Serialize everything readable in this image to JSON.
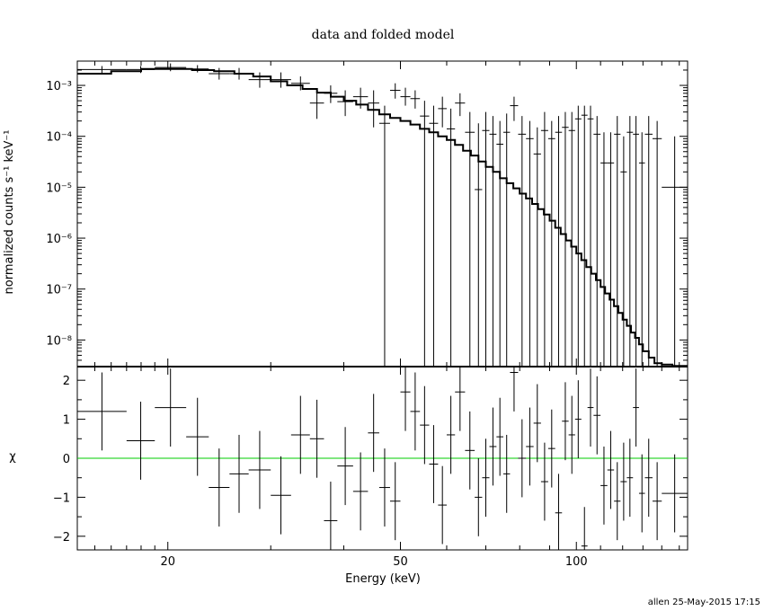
{
  "footer": "allen 25-May-2015 17:15",
  "colors": {
    "axis": "#000000",
    "data": "#000000",
    "model": "#000000",
    "zero_line": "#00cc00"
  },
  "chart_data": [
    {
      "panel": "top",
      "type": "line",
      "title": "data and folded model",
      "xlabel": "",
      "ylabel": "normalized counts s⁻¹ keV⁻¹",
      "x_scale": "log",
      "y_scale": "log",
      "xlim": [
        14,
        155
      ],
      "ylim": [
        3e-09,
        0.003
      ],
      "y_ticks": [
        {
          "v": 1e-08,
          "label": "10⁻⁸"
        },
        {
          "v": 1e-07,
          "label": "10⁻⁷"
        },
        {
          "v": 1e-06,
          "label": "10⁻⁶"
        },
        {
          "v": 1e-05,
          "label": "10⁻⁵"
        },
        {
          "v": 0.0001,
          "label": "10⁻⁴"
        },
        {
          "v": 0.001,
          "label": "10⁻³"
        }
      ],
      "model_step": [
        [
          14.0,
          0.0017
        ],
        [
          16.0,
          0.0019
        ],
        [
          18.0,
          0.0021
        ],
        [
          20.0,
          0.0021
        ],
        [
          22.0,
          0.002
        ],
        [
          24.0,
          0.0019
        ],
        [
          26.0,
          0.0017
        ],
        [
          28.0,
          0.0015
        ],
        [
          30.0,
          0.0012
        ],
        [
          32.0,
          0.001
        ],
        [
          34.0,
          0.00085
        ],
        [
          36.0,
          0.00072
        ],
        [
          38.0,
          0.0006
        ],
        [
          40.0,
          0.0005
        ],
        [
          42.0,
          0.00042
        ],
        [
          44.0,
          0.00033
        ],
        [
          46.0,
          0.00027
        ],
        [
          48.0,
          0.00023
        ],
        [
          50.0,
          0.0002
        ],
        [
          52.0,
          0.00017
        ],
        [
          54.0,
          0.00014
        ],
        [
          56.0,
          0.00012
        ],
        [
          58.0,
          0.0001
        ],
        [
          60.0,
          8.5e-05
        ],
        [
          62.0,
          6.8e-05
        ],
        [
          64.0,
          5.2e-05
        ],
        [
          66.0,
          4.2e-05
        ],
        [
          68.0,
          3.2e-05
        ],
        [
          70.0,
          2.5e-05
        ],
        [
          72.0,
          2e-05
        ],
        [
          74.0,
          1.5e-05
        ],
        [
          76.0,
          1.2e-05
        ],
        [
          78.0,
          9.5e-06
        ],
        [
          80.0,
          7.5e-06
        ],
        [
          82.0,
          6e-06
        ],
        [
          84.0,
          4.7e-06
        ],
        [
          86.0,
          3.7e-06
        ],
        [
          88.0,
          2.9e-06
        ],
        [
          90.0,
          2.2e-06
        ],
        [
          92.0,
          1.6e-06
        ],
        [
          94.0,
          1.2e-06
        ],
        [
          96.0,
          9e-07
        ],
        [
          98.0,
          6.8e-07
        ],
        [
          100.0,
          5e-07
        ],
        [
          102.0,
          3.7e-07
        ],
        [
          104.0,
          2.7e-07
        ],
        [
          106.0,
          2e-07
        ],
        [
          108.0,
          1.5e-07
        ],
        [
          110.0,
          1.1e-07
        ],
        [
          112.0,
          8.2e-08
        ],
        [
          114.0,
          6.2e-08
        ],
        [
          116.0,
          4.6e-08
        ],
        [
          118.0,
          3.4e-08
        ],
        [
          120.0,
          2.5e-08
        ],
        [
          122.0,
          1.9e-08
        ],
        [
          124.0,
          1.4e-08
        ],
        [
          126.0,
          1.1e-08
        ],
        [
          128.0,
          8.2e-09
        ],
        [
          130.0,
          6e-09
        ],
        [
          133.0,
          4.5e-09
        ],
        [
          136.0,
          3.5e-09
        ],
        [
          140.0,
          3.3e-09
        ],
        [
          146.0,
          3.1e-09
        ],
        [
          155.0,
          3e-09
        ]
      ],
      "data_points": [
        {
          "x0": 14.0,
          "x1": 17.0,
          "y": 0.00205,
          "ylo": 0.00175,
          "yhi": 0.0024
        },
        {
          "x0": 17.0,
          "x1": 19.0,
          "y": 0.00205,
          "ylo": 0.00175,
          "yhi": 0.0024
        },
        {
          "x0": 19.0,
          "x1": 21.5,
          "y": 0.00225,
          "ylo": 0.0019,
          "yhi": 0.0027
        },
        {
          "x0": 21.5,
          "x1": 23.5,
          "y": 0.0021,
          "ylo": 0.0018,
          "yhi": 0.0025
        },
        {
          "x0": 23.5,
          "x1": 25.5,
          "y": 0.0017,
          "ylo": 0.0013,
          "yhi": 0.0022
        },
        {
          "x0": 25.5,
          "x1": 27.5,
          "y": 0.0017,
          "ylo": 0.0013,
          "yhi": 0.0022
        },
        {
          "x0": 27.5,
          "x1": 30.0,
          "y": 0.0013,
          "ylo": 0.0009,
          "yhi": 0.0018
        },
        {
          "x0": 30.0,
          "x1": 32.5,
          "y": 0.0013,
          "ylo": 0.0009,
          "yhi": 0.0018
        },
        {
          "x0": 32.5,
          "x1": 35.0,
          "y": 0.0011,
          "ylo": 0.0008,
          "yhi": 0.0015
        },
        {
          "x0": 35.0,
          "x1": 37.0,
          "y": 0.00045,
          "ylo": 0.00022,
          "yhi": 0.0008
        },
        {
          "x0": 37.0,
          "x1": 39.0,
          "y": 0.0007,
          "ylo": 0.00045,
          "yhi": 0.001
        },
        {
          "x0": 39.0,
          "x1": 41.5,
          "y": 0.00048,
          "ylo": 0.00025,
          "yhi": 0.0008
        },
        {
          "x0": 41.5,
          "x1": 44.0,
          "y": 0.0006,
          "ylo": 0.00035,
          "yhi": 0.0009
        },
        {
          "x0": 44.0,
          "x1": 46.0,
          "y": 0.00045,
          "ylo": 0.00015,
          "yhi": 0.0008
        },
        {
          "x0": 46.0,
          "x1": 48.0,
          "y": 0.00018,
          "ylo": 3e-09,
          "yhi": 0.0004
        },
        {
          "x0": 48.0,
          "x1": 50.0,
          "y": 0.0008,
          "ylo": 0.00055,
          "yhi": 0.0011
        },
        {
          "x0": 50.0,
          "x1": 52.0,
          "y": 0.0006,
          "ylo": 0.0004,
          "yhi": 0.0009
        },
        {
          "x0": 52.0,
          "x1": 54.0,
          "y": 0.00055,
          "ylo": 0.00035,
          "yhi": 0.0008
        },
        {
          "x0": 54.0,
          "x1": 56.0,
          "y": 0.00025,
          "ylo": 3e-09,
          "yhi": 0.0005
        },
        {
          "x0": 56.0,
          "x1": 58.0,
          "y": 0.00018,
          "ylo": 3e-09,
          "yhi": 0.0004
        },
        {
          "x0": 58.0,
          "x1": 60.0,
          "y": 0.00035,
          "ylo": 0.00015,
          "yhi": 0.0006
        },
        {
          "x0": 60.0,
          "x1": 62.0,
          "y": 0.00014,
          "ylo": 3e-09,
          "yhi": 0.00035
        },
        {
          "x0": 62.0,
          "x1": 64.5,
          "y": 0.00045,
          "ylo": 0.00025,
          "yhi": 0.0007
        },
        {
          "x0": 64.5,
          "x1": 67.0,
          "y": 0.00012,
          "ylo": 3e-09,
          "yhi": 0.0003
        },
        {
          "x0": 67.0,
          "x1": 69.0,
          "y": 9e-06,
          "ylo": 3e-09,
          "yhi": 0.00018
        },
        {
          "x0": 69.0,
          "x1": 71.0,
          "y": 0.00013,
          "ylo": 3e-09,
          "yhi": 0.0003
        },
        {
          "x0": 71.0,
          "x1": 73.0,
          "y": 0.00011,
          "ylo": 3e-09,
          "yhi": 0.00025
        },
        {
          "x0": 73.0,
          "x1": 75.0,
          "y": 7e-05,
          "ylo": 3e-09,
          "yhi": 0.0002
        },
        {
          "x0": 75.0,
          "x1": 77.0,
          "y": 0.00012,
          "ylo": 3e-09,
          "yhi": 0.00028
        },
        {
          "x0": 77.0,
          "x1": 79.5,
          "y": 0.0004,
          "ylo": 0.0002,
          "yhi": 0.0006
        },
        {
          "x0": 79.5,
          "x1": 82.0,
          "y": 0.00011,
          "ylo": 3e-09,
          "yhi": 0.00025
        },
        {
          "x0": 82.0,
          "x1": 84.5,
          "y": 9e-05,
          "ylo": 3e-09,
          "yhi": 0.0002
        },
        {
          "x0": 84.5,
          "x1": 87.0,
          "y": 4.5e-05,
          "ylo": 3e-09,
          "yhi": 0.00015
        },
        {
          "x0": 87.0,
          "x1": 89.5,
          "y": 0.00013,
          "ylo": 3e-09,
          "yhi": 0.0003
        },
        {
          "x0": 89.5,
          "x1": 92.0,
          "y": 9e-05,
          "ylo": 3e-09,
          "yhi": 0.0002
        },
        {
          "x0": 92.0,
          "x1": 94.5,
          "y": 0.00012,
          "ylo": 3e-09,
          "yhi": 0.00025
        },
        {
          "x0": 94.5,
          "x1": 97.0,
          "y": 0.00015,
          "ylo": 3e-09,
          "yhi": 0.0003
        },
        {
          "x0": 97.0,
          "x1": 99.5,
          "y": 0.00013,
          "ylo": 3e-09,
          "yhi": 0.0003
        },
        {
          "x0": 99.5,
          "x1": 102.0,
          "y": 0.00022,
          "ylo": 3e-09,
          "yhi": 0.0004
        },
        {
          "x0": 102.0,
          "x1": 104.5,
          "y": 0.00026,
          "ylo": 3e-09,
          "yhi": 0.0004
        },
        {
          "x0": 104.5,
          "x1": 107.0,
          "y": 0.00022,
          "ylo": 3e-09,
          "yhi": 0.0004
        },
        {
          "x0": 107.0,
          "x1": 110.0,
          "y": 0.00011,
          "ylo": 3e-09,
          "yhi": 0.00025
        },
        {
          "x0": 110.0,
          "x1": 113.0,
          "y": 3e-05,
          "ylo": 3e-09,
          "yhi": 0.00012
        },
        {
          "x0": 113.0,
          "x1": 116.0,
          "y": 3e-05,
          "ylo": 3e-09,
          "yhi": 0.00012
        },
        {
          "x0": 116.0,
          "x1": 119.0,
          "y": 0.00011,
          "ylo": 3e-09,
          "yhi": 0.00025
        },
        {
          "x0": 119.0,
          "x1": 122.0,
          "y": 2e-05,
          "ylo": 3e-09,
          "yhi": 0.0001
        },
        {
          "x0": 122.0,
          "x1": 125.0,
          "y": 0.00012,
          "ylo": 3e-09,
          "yhi": 0.00025
        },
        {
          "x0": 125.0,
          "x1": 128.0,
          "y": 0.00011,
          "ylo": 3e-09,
          "yhi": 0.00025
        },
        {
          "x0": 128.0,
          "x1": 131.0,
          "y": 3e-05,
          "ylo": 3e-09,
          "yhi": 0.00012
        },
        {
          "x0": 131.0,
          "x1": 135.0,
          "y": 0.00011,
          "ylo": 3e-09,
          "yhi": 0.00025
        },
        {
          "x0": 135.0,
          "x1": 140.0,
          "y": 9e-05,
          "ylo": 3e-09,
          "yhi": 0.0002
        },
        {
          "x0": 140.0,
          "x1": 155.0,
          "y": 1e-05,
          "ylo": 3e-09,
          "yhi": 0.0001
        }
      ]
    },
    {
      "panel": "bottom",
      "type": "scatter",
      "xlabel": "Energy (keV)",
      "ylabel": "χ",
      "x_scale": "log",
      "xlim": [
        14,
        155
      ],
      "ylim": [
        -2.35,
        2.35
      ],
      "x_ticks": [
        {
          "v": 20,
          "label": "20"
        },
        {
          "v": 50,
          "label": "50"
        },
        {
          "v": 100,
          "label": "100"
        }
      ],
      "y_ticks": [
        {
          "v": -2,
          "label": "−2"
        },
        {
          "v": -1,
          "label": "−1"
        },
        {
          "v": 0,
          "label": "0"
        },
        {
          "v": 1,
          "label": "1"
        },
        {
          "v": 2,
          "label": "2"
        }
      ],
      "zero_line": 0,
      "residuals": [
        {
          "x0": 14.0,
          "x1": 17.0,
          "y": 1.2,
          "ylo": 0.2,
          "yhi": 2.2
        },
        {
          "x0": 17.0,
          "x1": 19.0,
          "y": 0.45,
          "ylo": -0.55,
          "yhi": 1.45
        },
        {
          "x0": 19.0,
          "x1": 21.5,
          "y": 1.3,
          "ylo": 0.3,
          "yhi": 2.3
        },
        {
          "x0": 21.5,
          "x1": 23.5,
          "y": 0.55,
          "ylo": -0.45,
          "yhi": 1.55
        },
        {
          "x0": 23.5,
          "x1": 25.5,
          "y": -0.75,
          "ylo": -1.75,
          "yhi": 0.25
        },
        {
          "x0": 25.5,
          "x1": 27.5,
          "y": -0.4,
          "ylo": -1.4,
          "yhi": 0.6
        },
        {
          "x0": 27.5,
          "x1": 30.0,
          "y": -0.3,
          "ylo": -1.3,
          "yhi": 0.7
        },
        {
          "x0": 30.0,
          "x1": 32.5,
          "y": -0.95,
          "ylo": -1.95,
          "yhi": 0.05
        },
        {
          "x0": 32.5,
          "x1": 35.0,
          "y": 0.6,
          "ylo": -0.4,
          "yhi": 1.6
        },
        {
          "x0": 35.0,
          "x1": 37.0,
          "y": 0.5,
          "ylo": -0.5,
          "yhi": 1.5
        },
        {
          "x0": 37.0,
          "x1": 39.0,
          "y": -1.6,
          "ylo": -2.35,
          "yhi": -0.6
        },
        {
          "x0": 39.0,
          "x1": 41.5,
          "y": -0.2,
          "ylo": -1.2,
          "yhi": 0.8
        },
        {
          "x0": 41.5,
          "x1": 44.0,
          "y": -0.85,
          "ylo": -1.85,
          "yhi": 0.15
        },
        {
          "x0": 44.0,
          "x1": 46.0,
          "y": 0.65,
          "ylo": -0.35,
          "yhi": 1.65
        },
        {
          "x0": 46.0,
          "x1": 48.0,
          "y": -0.75,
          "ylo": -1.75,
          "yhi": 0.25
        },
        {
          "x0": 48.0,
          "x1": 50.0,
          "y": -1.1,
          "ylo": -2.1,
          "yhi": -0.1
        },
        {
          "x0": 50.0,
          "x1": 52.0,
          "y": 1.7,
          "ylo": 0.7,
          "yhi": 2.35
        },
        {
          "x0": 52.0,
          "x1": 54.0,
          "y": 1.2,
          "ylo": 0.2,
          "yhi": 2.2
        },
        {
          "x0": 54.0,
          "x1": 56.0,
          "y": 0.85,
          "ylo": -0.15,
          "yhi": 1.85
        },
        {
          "x0": 56.0,
          "x1": 58.0,
          "y": -0.15,
          "ylo": -1.15,
          "yhi": 0.85
        },
        {
          "x0": 58.0,
          "x1": 60.0,
          "y": -1.2,
          "ylo": -2.2,
          "yhi": -0.2
        },
        {
          "x0": 60.0,
          "x1": 62.0,
          "y": 0.6,
          "ylo": -0.4,
          "yhi": 1.6
        },
        {
          "x0": 62.0,
          "x1": 64.5,
          "y": 1.7,
          "ylo": 0.7,
          "yhi": 2.35
        },
        {
          "x0": 64.5,
          "x1": 67.0,
          "y": 0.2,
          "ylo": -0.8,
          "yhi": 1.2
        },
        {
          "x0": 67.0,
          "x1": 69.0,
          "y": -1.0,
          "ylo": -2.0,
          "yhi": 0.0
        },
        {
          "x0": 69.0,
          "x1": 71.0,
          "y": -0.5,
          "ylo": -1.5,
          "yhi": 0.5
        },
        {
          "x0": 71.0,
          "x1": 73.0,
          "y": 0.3,
          "ylo": -0.7,
          "yhi": 1.3
        },
        {
          "x0": 73.0,
          "x1": 75.0,
          "y": 0.55,
          "ylo": -0.45,
          "yhi": 1.55
        },
        {
          "x0": 75.0,
          "x1": 77.0,
          "y": -0.4,
          "ylo": -1.4,
          "yhi": 0.6
        },
        {
          "x0": 77.0,
          "x1": 79.5,
          "y": 2.2,
          "ylo": 1.2,
          "yhi": 2.35
        },
        {
          "x0": 79.5,
          "x1": 82.0,
          "y": 0.0,
          "ylo": -1.0,
          "yhi": 1.0
        },
        {
          "x0": 82.0,
          "x1": 84.5,
          "y": 0.3,
          "ylo": -0.7,
          "yhi": 1.3
        },
        {
          "x0": 84.5,
          "x1": 87.0,
          "y": 0.9,
          "ylo": -0.1,
          "yhi": 1.9
        },
        {
          "x0": 87.0,
          "x1": 89.5,
          "y": -0.6,
          "ylo": -1.6,
          "yhi": 0.4
        },
        {
          "x0": 89.5,
          "x1": 92.0,
          "y": 0.25,
          "ylo": -0.75,
          "yhi": 1.25
        },
        {
          "x0": 92.0,
          "x1": 94.5,
          "y": -1.4,
          "ylo": -2.35,
          "yhi": -0.4
        },
        {
          "x0": 94.5,
          "x1": 97.0,
          "y": 0.95,
          "ylo": -0.05,
          "yhi": 1.95
        },
        {
          "x0": 97.0,
          "x1": 99.5,
          "y": 0.6,
          "ylo": -0.4,
          "yhi": 1.6
        },
        {
          "x0": 99.5,
          "x1": 102.0,
          "y": 1.0,
          "ylo": 0.0,
          "yhi": 2.0
        },
        {
          "x0": 102.0,
          "x1": 104.5,
          "y": -2.25,
          "ylo": -2.35,
          "yhi": -1.25
        },
        {
          "x0": 104.5,
          "x1": 107.0,
          "y": 1.3,
          "ylo": 0.3,
          "yhi": 2.3
        },
        {
          "x0": 107.0,
          "x1": 110.0,
          "y": 1.1,
          "ylo": 0.1,
          "yhi": 2.1
        },
        {
          "x0": 110.0,
          "x1": 113.0,
          "y": -0.7,
          "ylo": -1.7,
          "yhi": 0.3
        },
        {
          "x0": 113.0,
          "x1": 116.0,
          "y": -0.3,
          "ylo": -1.3,
          "yhi": 0.7
        },
        {
          "x0": 116.0,
          "x1": 119.0,
          "y": -1.1,
          "ylo": -2.1,
          "yhi": -0.1
        },
        {
          "x0": 119.0,
          "x1": 122.0,
          "y": -0.6,
          "ylo": -1.6,
          "yhi": 0.4
        },
        {
          "x0": 122.0,
          "x1": 125.0,
          "y": -0.5,
          "ylo": -1.5,
          "yhi": 0.5
        },
        {
          "x0": 125.0,
          "x1": 128.0,
          "y": 1.3,
          "ylo": 0.3,
          "yhi": 2.3
        },
        {
          "x0": 128.0,
          "x1": 131.0,
          "y": -0.9,
          "ylo": -1.9,
          "yhi": 0.1
        },
        {
          "x0": 131.0,
          "x1": 135.0,
          "y": -0.5,
          "ylo": -1.5,
          "yhi": 0.5
        },
        {
          "x0": 135.0,
          "x1": 140.0,
          "y": -1.1,
          "ylo": -2.1,
          "yhi": -0.1
        },
        {
          "x0": 140.0,
          "x1": 155.0,
          "y": -0.9,
          "ylo": -1.9,
          "yhi": 0.1
        }
      ]
    }
  ]
}
